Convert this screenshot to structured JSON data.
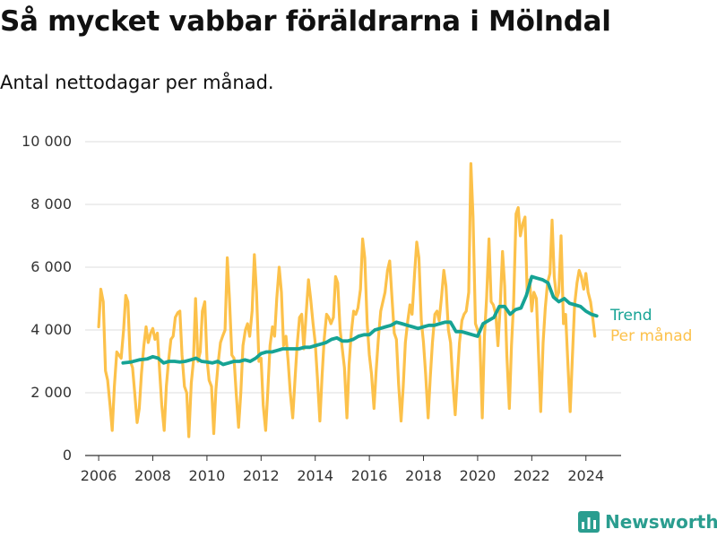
{
  "title": "Så mycket vabbar föräldrarna i Mölndal",
  "subtitle": "Antal nettodagar per månad.",
  "brand": {
    "name": "Newsworthy",
    "icon": "bar-chart-logo-icon"
  },
  "colors": {
    "monthly": "#fcc14a",
    "trend": "#16a394",
    "axis": "#333333",
    "grid": "#dddddd",
    "brand": "#2a9d8f"
  },
  "chart_data": {
    "type": "line",
    "title": "Så mycket vabbar föräldrarna i Mölndal",
    "subtitle": "Antal nettodagar per månad.",
    "xlim": [
      2005.5,
      2025.3
    ],
    "ylim": [
      0,
      10000
    ],
    "x_ticks": [
      2006,
      2008,
      2010,
      2012,
      2014,
      2016,
      2018,
      2020,
      2022,
      2024
    ],
    "x_tick_labels": [
      "2006",
      "2008",
      "2010",
      "2012",
      "2014",
      "2016",
      "2018",
      "2020",
      "2022",
      "2024"
    ],
    "y_ticks": [
      0,
      2000,
      4000,
      6000,
      8000,
      10000
    ],
    "y_tick_labels": [
      "0",
      "2 000",
      "4 000",
      "6 000",
      "8 000",
      "10 000"
    ],
    "grid": "horizontal",
    "series": [
      {
        "name": "Per månad",
        "x": [
          2006.0,
          2006.08,
          2006.17,
          2006.25,
          2006.33,
          2006.42,
          2006.5,
          2006.58,
          2006.67,
          2006.75,
          2006.83,
          2006.92,
          2007.0,
          2007.08,
          2007.17,
          2007.25,
          2007.33,
          2007.42,
          2007.5,
          2007.58,
          2007.67,
          2007.75,
          2007.83,
          2007.92,
          2008.0,
          2008.08,
          2008.17,
          2008.25,
          2008.33,
          2008.42,
          2008.5,
          2008.58,
          2008.67,
          2008.75,
          2008.83,
          2008.92,
          2009.0,
          2009.08,
          2009.17,
          2009.25,
          2009.33,
          2009.42,
          2009.5,
          2009.58,
          2009.67,
          2009.75,
          2009.83,
          2009.92,
          2010.0,
          2010.08,
          2010.17,
          2010.25,
          2010.33,
          2010.42,
          2010.5,
          2010.58,
          2010.67,
          2010.75,
          2010.83,
          2010.92,
          2011.0,
          2011.08,
          2011.17,
          2011.25,
          2011.33,
          2011.42,
          2011.5,
          2011.58,
          2011.67,
          2011.75,
          2011.83,
          2011.92,
          2012.0,
          2012.08,
          2012.17,
          2012.25,
          2012.33,
          2012.42,
          2012.5,
          2012.58,
          2012.67,
          2012.75,
          2012.83,
          2012.92,
          2013.0,
          2013.08,
          2013.17,
          2013.25,
          2013.33,
          2013.42,
          2013.5,
          2013.58,
          2013.67,
          2013.75,
          2013.83,
          2013.92,
          2014.0,
          2014.08,
          2014.17,
          2014.25,
          2014.33,
          2014.42,
          2014.5,
          2014.58,
          2014.67,
          2014.75,
          2014.83,
          2014.92,
          2015.0,
          2015.08,
          2015.17,
          2015.25,
          2015.33,
          2015.42,
          2015.5,
          2015.58,
          2015.67,
          2015.75,
          2015.83,
          2015.92,
          2016.0,
          2016.08,
          2016.17,
          2016.25,
          2016.33,
          2016.42,
          2016.5,
          2016.58,
          2016.67,
          2016.75,
          2016.83,
          2016.92,
          2017.0,
          2017.08,
          2017.17,
          2017.25,
          2017.33,
          2017.42,
          2017.5,
          2017.58,
          2017.67,
          2017.75,
          2017.83,
          2017.92,
          2018.0,
          2018.08,
          2018.17,
          2018.25,
          2018.33,
          2018.42,
          2018.5,
          2018.58,
          2018.67,
          2018.75,
          2018.83,
          2018.92,
          2019.0,
          2019.08,
          2019.17,
          2019.25,
          2019.33,
          2019.42,
          2019.5,
          2019.58,
          2019.67,
          2019.75,
          2019.83,
          2019.92,
          2020.0,
          2020.08,
          2020.17,
          2020.25,
          2020.33,
          2020.42,
          2020.5,
          2020.58,
          2020.67,
          2020.75,
          2020.83,
          2020.92,
          2021.0,
          2021.08,
          2021.17,
          2021.25,
          2021.33,
          2021.42,
          2021.5,
          2021.58,
          2021.67,
          2021.75,
          2021.83,
          2021.92,
          2022.0,
          2022.08,
          2022.17,
          2022.25,
          2022.33,
          2022.42,
          2022.5,
          2022.58,
          2022.67,
          2022.75,
          2022.83,
          2022.92,
          2023.0,
          2023.08,
          2023.17,
          2023.25,
          2023.33,
          2023.42,
          2023.5,
          2023.58,
          2023.67,
          2023.75,
          2023.83,
          2023.92,
          2024.0,
          2024.08,
          2024.17,
          2024.25,
          2024.33
        ],
        "values": [
          4100,
          5300,
          4900,
          2700,
          2400,
          1600,
          800,
          2200,
          3300,
          3200,
          3100,
          4000,
          5100,
          4900,
          3000,
          2800,
          2000,
          1050,
          1500,
          2600,
          3500,
          4100,
          3600,
          3900,
          4050,
          3700,
          3900,
          2700,
          1600,
          800,
          2200,
          3000,
          3700,
          3800,
          4400,
          4550,
          4600,
          3200,
          2200,
          2000,
          600,
          2300,
          3000,
          5000,
          3000,
          3300,
          4600,
          4900,
          3100,
          2400,
          2200,
          700,
          2100,
          3000,
          3600,
          3800,
          4000,
          6300,
          5000,
          3200,
          3100,
          2000,
          900,
          2000,
          3500,
          4000,
          4200,
          3800,
          4600,
          6400,
          5200,
          3000,
          3100,
          1600,
          800,
          2100,
          3500,
          4100,
          3800,
          5000,
          6000,
          5200,
          3500,
          3800,
          3000,
          2000,
          1200,
          2400,
          3500,
          4400,
          4500,
          3400,
          4600,
          5600,
          5000,
          4200,
          3600,
          2500,
          1100,
          2500,
          3700,
          4500,
          4400,
          4200,
          4400,
          5700,
          5500,
          4000,
          3400,
          2800,
          1200,
          2900,
          3900,
          4600,
          4500,
          4700,
          5300,
          6900,
          6300,
          4200,
          3200,
          2600,
          1500,
          2700,
          3700,
          4600,
          4900,
          5200,
          5900,
          6200,
          5100,
          3900,
          3700,
          2300,
          1100,
          2200,
          3600,
          4300,
          4800,
          4500,
          5800,
          6800,
          6300,
          4300,
          3600,
          2600,
          1200,
          2500,
          3600,
          4500,
          4600,
          4300,
          5100,
          5900,
          5400,
          4000,
          3600,
          2400,
          1300,
          2500,
          3600,
          4300,
          4500,
          4600,
          5200,
          9300,
          7600,
          4200,
          4000,
          3800,
          1200,
          3800,
          5000,
          6900,
          4900,
          4800,
          4500,
          3500,
          4700,
          6500,
          5400,
          3200,
          1500,
          3500,
          4900,
          7700,
          7900,
          7000,
          7400,
          7600,
          5200,
          5600,
          4600,
          5200,
          5000,
          3200,
          1400,
          3600,
          4700,
          5500,
          5800,
          7500,
          5700,
          5000,
          5200,
          7000,
          4200,
          4500,
          3000,
          1400,
          3100,
          4800,
          5500,
          5900,
          5700,
          5300,
          5800,
          5200,
          4900,
          4400,
          3800
        ]
      },
      {
        "name": "Trend",
        "x": [
          2006.9,
          2007.2,
          2007.5,
          2007.8,
          2008.0,
          2008.2,
          2008.4,
          2008.6,
          2008.8,
          2009.0,
          2009.2,
          2009.4,
          2009.6,
          2009.8,
          2010.0,
          2010.2,
          2010.4,
          2010.6,
          2010.8,
          2011.0,
          2011.2,
          2011.4,
          2011.6,
          2011.8,
          2012.0,
          2012.2,
          2012.4,
          2012.6,
          2012.8,
          2013.0,
          2013.2,
          2013.4,
          2013.6,
          2013.8,
          2014.0,
          2014.2,
          2014.4,
          2014.6,
          2014.8,
          2015.0,
          2015.2,
          2015.4,
          2015.6,
          2015.8,
          2016.0,
          2016.2,
          2016.4,
          2016.6,
          2016.8,
          2017.0,
          2017.2,
          2017.4,
          2017.6,
          2017.8,
          2018.0,
          2018.2,
          2018.4,
          2018.6,
          2018.8,
          2019.0,
          2019.2,
          2019.4,
          2019.6,
          2019.8,
          2020.0,
          2020.2,
          2020.4,
          2020.6,
          2020.8,
          2021.0,
          2021.2,
          2021.4,
          2021.6,
          2021.8,
          2022.0,
          2022.2,
          2022.4,
          2022.6,
          2022.8,
          2023.0,
          2023.2,
          2023.4,
          2023.6,
          2023.8,
          2024.0,
          2024.2,
          2024.4
        ],
        "values": [
          2950,
          2980,
          3050,
          3080,
          3150,
          3100,
          2950,
          3000,
          3000,
          2980,
          3000,
          3050,
          3100,
          3000,
          2980,
          2950,
          3000,
          2900,
          2950,
          3000,
          3000,
          3050,
          3000,
          3100,
          3250,
          3300,
          3300,
          3350,
          3400,
          3400,
          3400,
          3400,
          3450,
          3450,
          3500,
          3550,
          3600,
          3700,
          3750,
          3650,
          3650,
          3700,
          3800,
          3850,
          3850,
          4000,
          4050,
          4100,
          4150,
          4250,
          4200,
          4150,
          4100,
          4050,
          4100,
          4150,
          4150,
          4200,
          4250,
          4250,
          3950,
          3950,
          3900,
          3850,
          3800,
          4200,
          4300,
          4400,
          4750,
          4750,
          4500,
          4650,
          4700,
          5100,
          5700,
          5650,
          5600,
          5500,
          5050,
          4900,
          5000,
          4850,
          4800,
          4750,
          4600,
          4500,
          4450
        ]
      }
    ]
  }
}
